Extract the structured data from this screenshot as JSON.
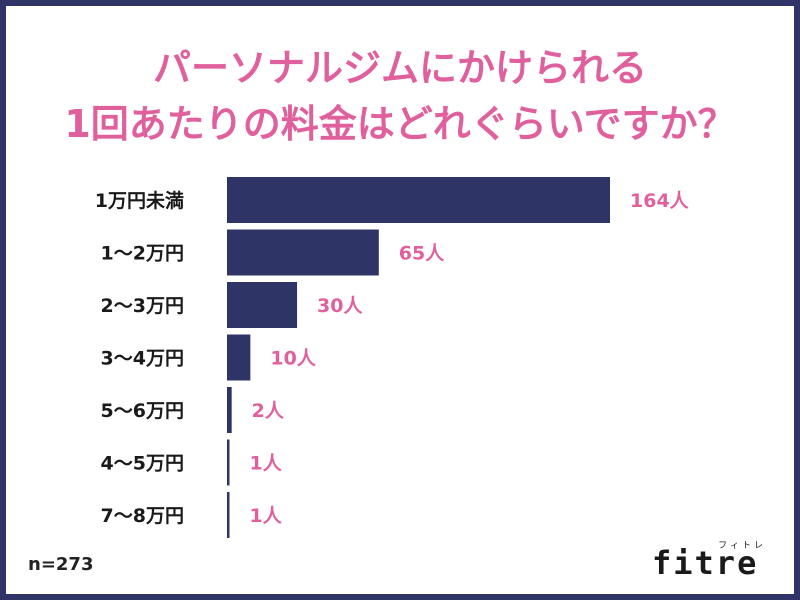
{
  "title": {
    "line1": "パーソナルジムにかけられる",
    "line2": "1回あたりの料金はどれぐらいですか？"
  },
  "sample_size": "n=273",
  "logo": {
    "ruby": "フィトレ",
    "word": "fitre"
  },
  "colors": {
    "bar": "#2e3466",
    "accent": "#e0609e",
    "frame": "#2e3466"
  },
  "chart_data": {
    "type": "bar",
    "orientation": "horizontal",
    "categories": [
      "1万円未満",
      "1〜2万円",
      "2〜3万円",
      "3〜4万円",
      "5〜6万円",
      "4〜5万円",
      "7〜8万円"
    ],
    "values": [
      164,
      65,
      30,
      10,
      2,
      1,
      1
    ],
    "value_labels": [
      "164人",
      "65人",
      "30人",
      "10人",
      "2人",
      "1人",
      "1人"
    ],
    "unit": "人",
    "title": "パーソナルジムにかけられる 1回あたりの料金はどれぐらいですか？",
    "xlabel": "",
    "ylabel": "",
    "xlim": [
      0,
      164
    ],
    "grid": false,
    "legend": "none"
  }
}
